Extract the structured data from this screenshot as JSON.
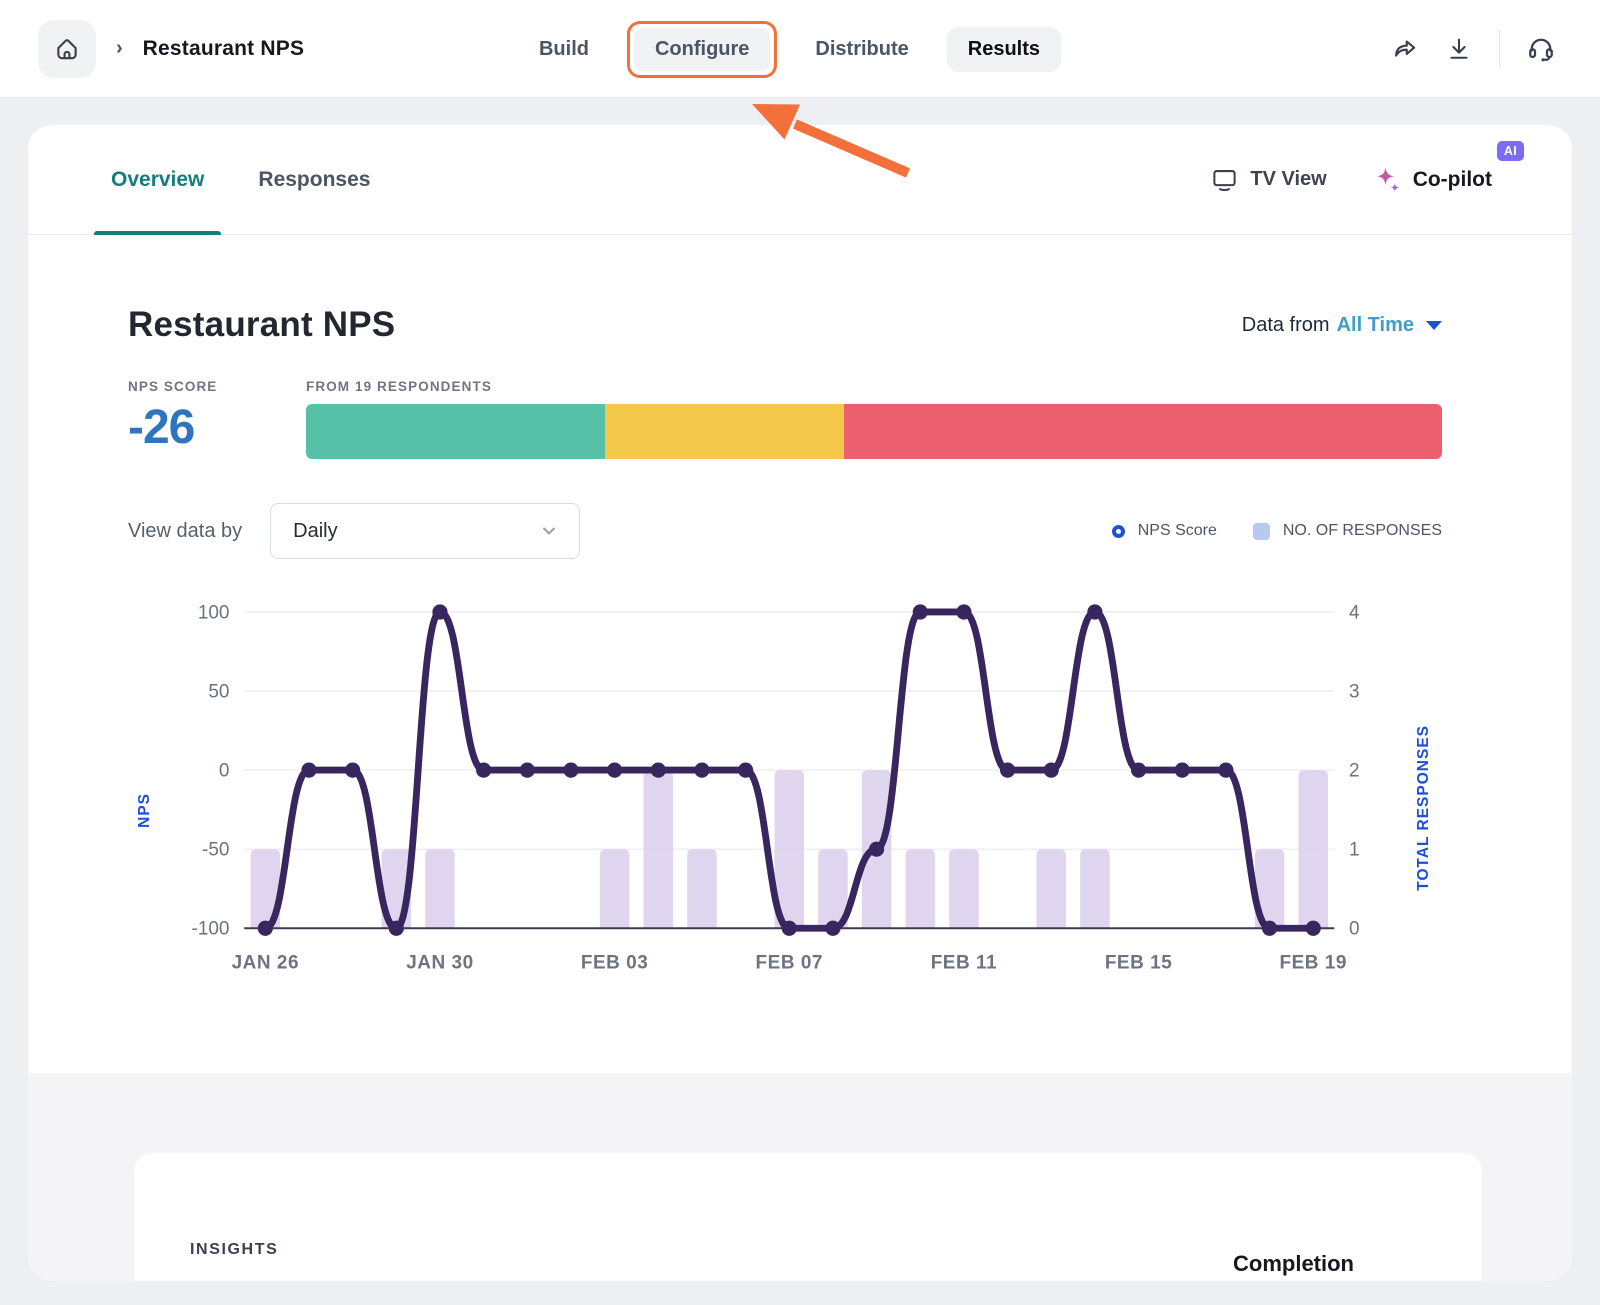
{
  "nav": {
    "breadcrumb": "Restaurant NPS",
    "breadcrumb_separator": "›",
    "tabs": {
      "build": "Build",
      "configure": "Configure",
      "distribute": "Distribute",
      "results": "Results"
    }
  },
  "header": {
    "overview_tab": "Overview",
    "responses_tab": "Responses",
    "tv_view_label": "TV View",
    "copilot_label": "Co-pilot",
    "ai_badge": "AI"
  },
  "overview": {
    "title": "Restaurant NPS",
    "data_from_label": "Data from",
    "data_from_value": "All Time",
    "nps_score_label": "NPS SCORE",
    "nps_score": "-26",
    "respondents_label": "FROM 19 RESPONDENTS",
    "nps_bar": {
      "segments": [
        {
          "name": "promoters",
          "color": "#56c1a7",
          "percent": 26.3
        },
        {
          "name": "passives",
          "color": "#f3c84b",
          "percent": 21.1
        },
        {
          "name": "detractors",
          "color": "#ec5f6e",
          "percent": 52.6
        }
      ]
    },
    "view_data_by_label": "View data by",
    "view_data_by_value": "Daily",
    "legend": [
      {
        "label": "NPS Score",
        "marker": "ring",
        "color": "#1d53d3"
      },
      {
        "label": "NO. OF RESPONSES",
        "marker": "square",
        "color": "#b9c7f1"
      }
    ]
  },
  "chart_data": {
    "type": "line+bar",
    "dates": [
      "JAN 26",
      "JAN 27",
      "JAN 28",
      "JAN 29",
      "JAN 30",
      "JAN 31",
      "FEB 01",
      "FEB 02",
      "FEB 03",
      "FEB 04",
      "FEB 05",
      "FEB 06",
      "FEB 07",
      "FEB 08",
      "FEB 09",
      "FEB 10",
      "FEB 11",
      "FEB 12",
      "FEB 13",
      "FEB 14",
      "FEB 15",
      "FEB 16",
      "FEB 17",
      "FEB 18",
      "FEB 19"
    ],
    "tick_interval": 4,
    "x_tick_labels": [
      "JAN 26",
      "JAN 30",
      "FEB 03",
      "FEB 07",
      "FEB 11",
      "FEB 15",
      "FEB 19"
    ],
    "series": [
      {
        "name": "NPS Score",
        "type": "line",
        "values": [
          -100,
          0,
          0,
          -100,
          100,
          0,
          0,
          0,
          0,
          0,
          0,
          0,
          -100,
          -100,
          -50,
          100,
          100,
          0,
          0,
          100,
          0,
          0,
          0,
          -100,
          -100
        ]
      },
      {
        "name": "NO. OF RESPONSES",
        "type": "bar",
        "values": [
          1,
          0,
          0,
          1,
          1,
          0,
          0,
          0,
          1,
          2,
          1,
          0,
          2,
          1,
          2,
          1,
          1,
          0,
          1,
          1,
          0,
          0,
          0,
          1,
          2
        ]
      }
    ],
    "left_axis": {
      "label": "NPS",
      "ticks": [
        100,
        50,
        0,
        -50,
        -100
      ],
      "range": [
        -100,
        100
      ]
    },
    "right_axis": {
      "label": "TOTAL RESPONSES",
      "ticks": [
        4,
        3,
        2,
        1,
        0
      ],
      "range": [
        0,
        4
      ]
    },
    "grid": true,
    "legend_position": "top-right",
    "colors": {
      "line": "#38275e",
      "dot": "#38275e",
      "bar": "#dcd0ec",
      "grid": "#ececf1",
      "axis_line": "#3f3d4d",
      "tick_text": "#6a7280",
      "date_text": "#6d7481"
    }
  },
  "insights": {
    "label": "INSIGHTS",
    "completion_header": "Completion"
  }
}
